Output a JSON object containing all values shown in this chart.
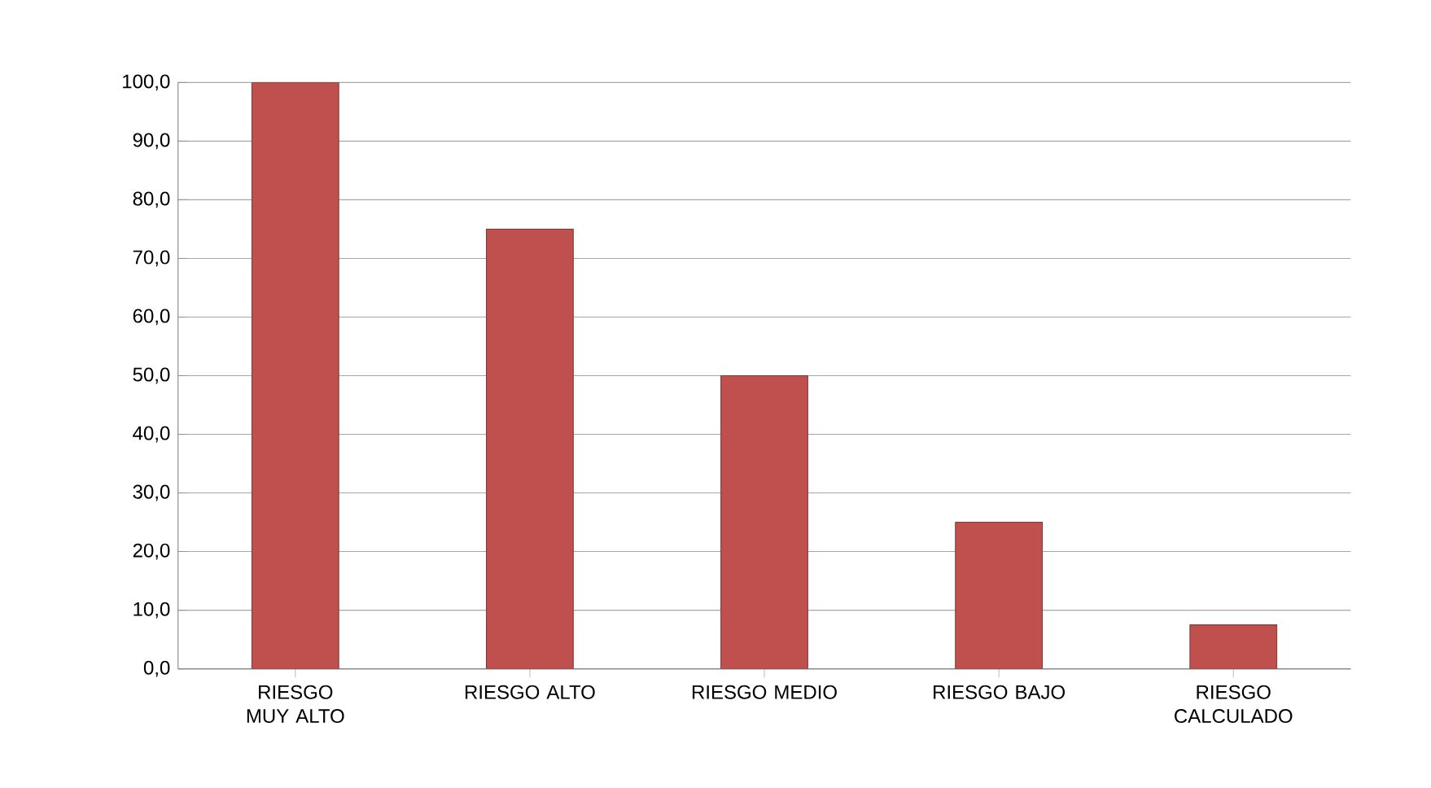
{
  "chart_data": {
    "type": "bar",
    "categories": [
      "RIESGO MUY ALTO",
      "RIESGO ALTO",
      "RIESGO MEDIO",
      "RIESGO BAJO",
      "RIESGO CALCULADO"
    ],
    "values": [
      100,
      75,
      50,
      25,
      7.5
    ],
    "color": "#c0504d",
    "ylim": [
      0,
      100
    ],
    "yticks": [
      {
        "value": 0,
        "label": "0,0"
      },
      {
        "value": 10,
        "label": "10,0"
      },
      {
        "value": 20,
        "label": "20,0"
      },
      {
        "value": 30,
        "label": "30,0"
      },
      {
        "value": 40,
        "label": "40,0"
      },
      {
        "value": 50,
        "label": "50,0"
      },
      {
        "value": 60,
        "label": "60,0"
      },
      {
        "value": 70,
        "label": "70,0"
      },
      {
        "value": 80,
        "label": "80,0"
      },
      {
        "value": 90,
        "label": "90,0"
      },
      {
        "value": 100,
        "label": "100,0"
      }
    ],
    "grid": "y"
  }
}
